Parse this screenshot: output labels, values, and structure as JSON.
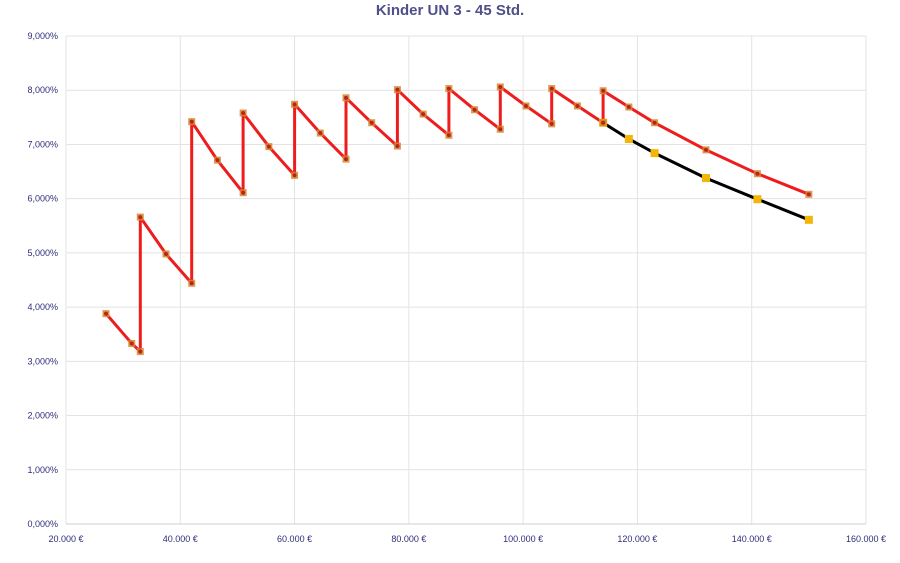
{
  "chart_data": {
    "type": "line",
    "title": "Kinder UN 3 - 45 Std.",
    "xlabel": "",
    "ylabel": "",
    "xlim": [
      20000,
      160000
    ],
    "ylim": [
      0,
      9
    ],
    "x_ticks": [
      20000,
      40000,
      60000,
      80000,
      100000,
      120000,
      140000,
      160000
    ],
    "x_tick_labels": [
      "20.000 €",
      "40.000 €",
      "60.000 €",
      "80.000 €",
      "100.000 €",
      "120.000 €",
      "140.000 €",
      "160.000 €"
    ],
    "y_ticks": [
      0,
      1,
      2,
      3,
      4,
      5,
      6,
      7,
      8,
      9
    ],
    "y_tick_labels": [
      "0,000%",
      "1,000%",
      "2,000%",
      "3,000%",
      "4,000%",
      "5,000%",
      "6,000%",
      "7,000%",
      "8,000%",
      "9,000%"
    ],
    "grid": true,
    "legend": "none",
    "series": [
      {
        "color": "#ee1c1c",
        "marker_color": "#cc3a1a",
        "x": [
          27000,
          31500,
          33000,
          33000,
          37500,
          42000,
          42000,
          46500,
          51000,
          51000,
          55500,
          60000,
          60000,
          64500,
          69000,
          69000,
          73500,
          78000,
          78000,
          82500,
          87000,
          87000,
          91500,
          96000,
          96000,
          100500,
          105000,
          105000,
          109500,
          114000,
          114000,
          118500,
          123000,
          132000,
          141000,
          150000
        ],
        "y": [
          3.88,
          3.33,
          3.18,
          5.66,
          4.98,
          4.44,
          7.42,
          6.71,
          6.11,
          7.58,
          6.96,
          6.43,
          7.74,
          7.21,
          6.73,
          7.86,
          7.4,
          6.97,
          8.01,
          7.56,
          7.17,
          8.03,
          7.64,
          7.28,
          8.06,
          7.71,
          7.38,
          8.03,
          7.71,
          7.4,
          7.99,
          7.69,
          7.4,
          6.9,
          6.46,
          6.08
        ]
      },
      {
        "color": "#000000",
        "marker_color": "#f2b705",
        "x": [
          114000,
          118500,
          123000,
          132000,
          141000,
          150000
        ],
        "y": [
          7.4,
          7.1,
          6.84,
          6.38,
          5.99,
          5.61
        ]
      }
    ]
  }
}
